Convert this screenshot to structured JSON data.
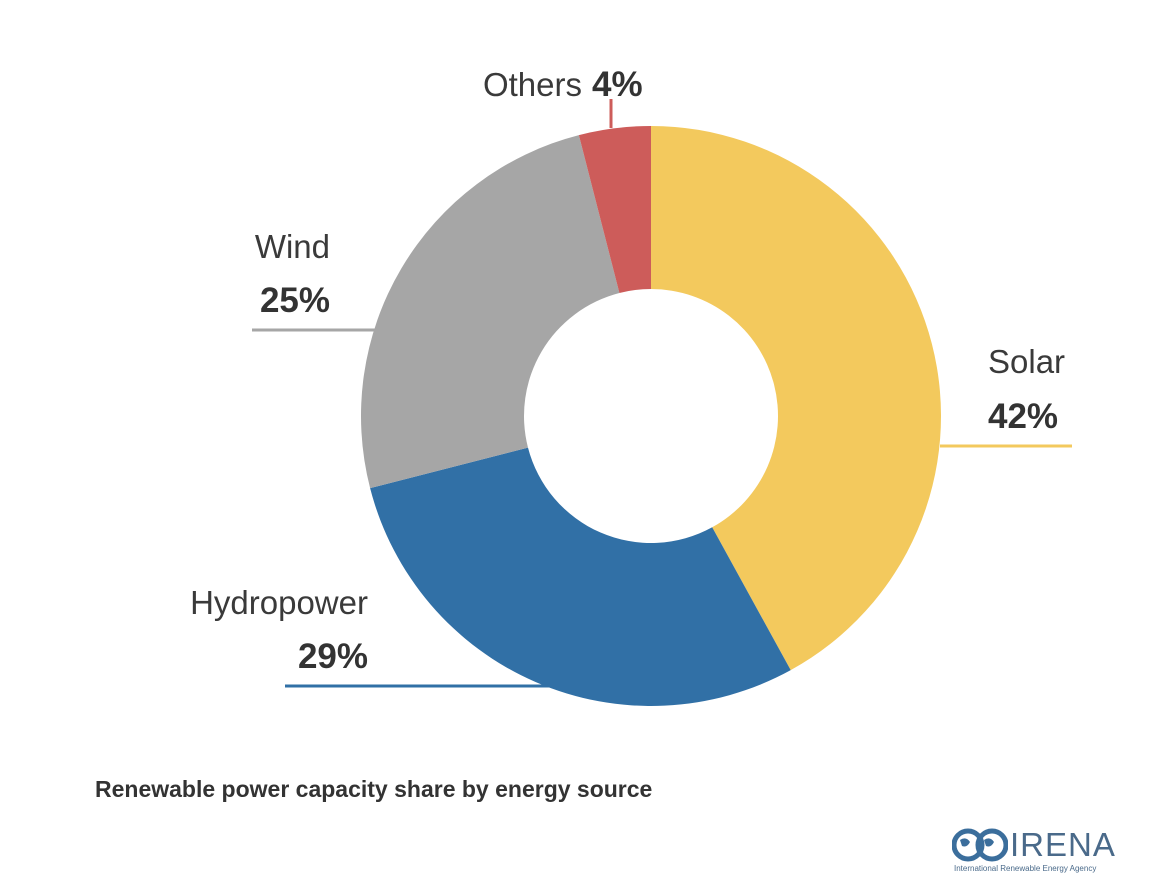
{
  "chart_data": {
    "type": "pie",
    "categories": [
      "Solar",
      "Hydropower",
      "Wind",
      "Others"
    ],
    "values": [
      42,
      29,
      25,
      4
    ],
    "value_labels": [
      "42%",
      "29%",
      "25%",
      "4%"
    ],
    "colors": [
      "#f3c95d",
      "#3170a6",
      "#a6a6a6",
      "#cd5c5a"
    ],
    "title": "Renewable power capacity share by energy source",
    "donut": true,
    "label_placement": "outside with leader lines"
  },
  "caption": "Renewable power capacity share by energy source",
  "logo": {
    "wordmark": "IRENA",
    "subtitle": "International Renewable Energy Agency",
    "icon": "globe-icon"
  }
}
